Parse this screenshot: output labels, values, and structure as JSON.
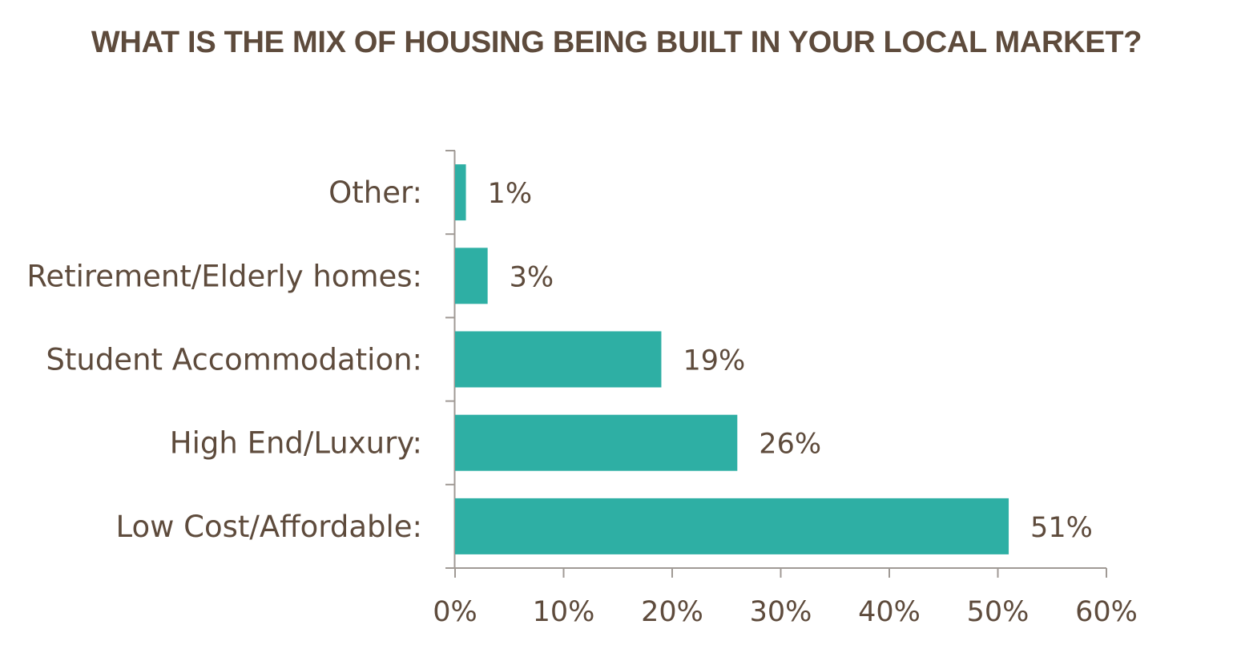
{
  "chart_data": {
    "type": "bar",
    "orientation": "horizontal",
    "title": "WHAT IS THE MIX OF HOUSING BEING BUILT IN YOUR LOCAL MARKET?",
    "categories": [
      "Low Cost/Affordable:",
      "High End/Luxury:",
      "Student Accommodation:",
      "Retirement/Elderly homes:",
      "Other:"
    ],
    "values": [
      51,
      26,
      19,
      3,
      1
    ],
    "value_labels": [
      "51%",
      "26%",
      "19%",
      "3%",
      "1%"
    ],
    "xlim": [
      0,
      60
    ],
    "xticks": [
      0,
      10,
      20,
      30,
      40,
      50,
      60
    ],
    "xtick_labels": [
      "0%",
      "10%",
      "20%",
      "30%",
      "40%",
      "50%",
      "60%"
    ],
    "grid": false,
    "bar_color": "#2eafa4",
    "text_color": "#5e4b3c",
    "axis_color": "#a09a95"
  }
}
